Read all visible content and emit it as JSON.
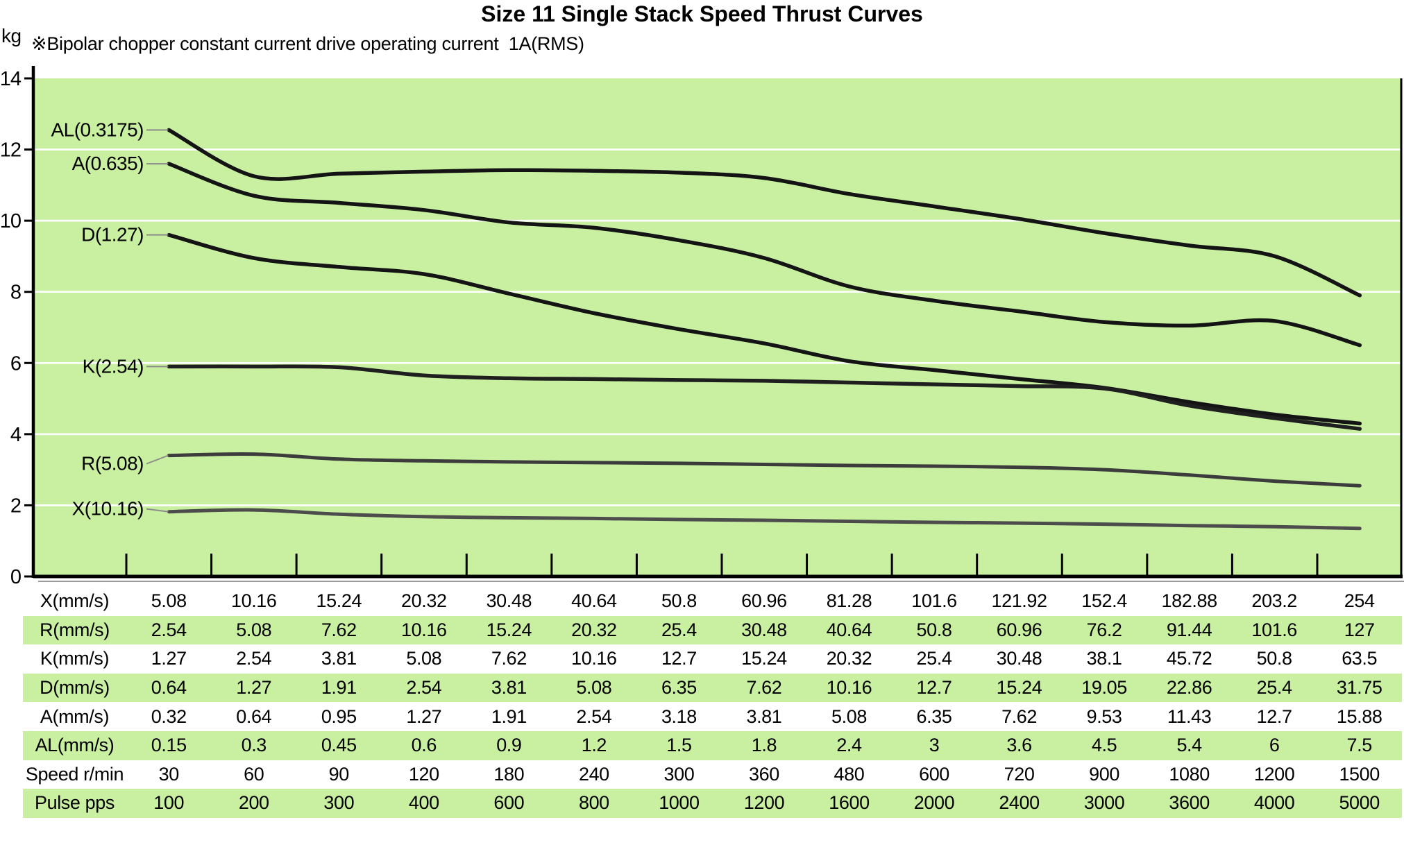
{
  "title": "Size 11 Single Stack Speed Thrust Curves",
  "note": "※Bipolar chopper constant current drive operating current  1A(RMS)",
  "y_axis": {
    "unit": "kg",
    "ticks": [
      0,
      2,
      4,
      6,
      8,
      10,
      12,
      14
    ],
    "max": 14
  },
  "colors": {
    "plot_bg": "#c8f0a0",
    "band": "#c8f0a0",
    "grid": "#ffffff",
    "axis": "#000000",
    "axis_shadow": "#9a9a9a",
    "leader": "#8c8c8c"
  },
  "chart_data": {
    "type": "line",
    "title": "Size 11 Single Stack Speed Thrust Curves",
    "xlabel": "",
    "ylabel": "kg",
    "ylim": [
      0,
      14
    ],
    "grid": "horizontal white gridlines every 2 kg",
    "legend_position": "inline labels with leader lines at curve start",
    "categories": [
      "5.08",
      "10.16",
      "15.24",
      "20.32",
      "30.48",
      "40.64",
      "50.8",
      "60.96",
      "81.28",
      "101.6",
      "121.92",
      "152.4",
      "182.88",
      "203.2",
      "254"
    ],
    "series": [
      {
        "name": "AL(0.3175)",
        "color": "#141414",
        "width": 5.5,
        "label_dy": 0,
        "values": [
          12.55,
          11.25,
          11.32,
          11.38,
          11.42,
          11.4,
          11.35,
          11.2,
          10.75,
          10.4,
          10.05,
          9.65,
          9.3,
          9.0,
          7.9
        ]
      },
      {
        "name": "A(0.635)",
        "color": "#141414",
        "width": 5.5,
        "label_dy": 0,
        "values": [
          11.6,
          10.7,
          10.5,
          10.3,
          9.95,
          9.8,
          9.45,
          8.95,
          8.15,
          7.75,
          7.45,
          7.15,
          7.05,
          7.18,
          6.5
        ]
      },
      {
        "name": "D(1.27)",
        "color": "#141414",
        "width": 5.5,
        "label_dy": 0,
        "values": [
          9.6,
          8.95,
          8.7,
          8.5,
          7.95,
          7.4,
          6.95,
          6.55,
          6.05,
          5.8,
          5.55,
          5.3,
          4.9,
          4.55,
          4.3
        ]
      },
      {
        "name": "K(2.54)",
        "color": "#1f1f1f",
        "width": 5.5,
        "label_dy": 0,
        "values": [
          5.9,
          5.9,
          5.88,
          5.65,
          5.57,
          5.55,
          5.52,
          5.5,
          5.45,
          5.4,
          5.35,
          5.28,
          4.8,
          4.45,
          4.15
        ]
      },
      {
        "name": "R(5.08)",
        "color": "#3c3c3c",
        "width": 5,
        "label_dy": 12,
        "values": [
          3.4,
          3.44,
          3.3,
          3.25,
          3.22,
          3.2,
          3.18,
          3.15,
          3.12,
          3.1,
          3.07,
          3.0,
          2.85,
          2.68,
          2.55
        ]
      },
      {
        "name": "X(10.16)",
        "color": "#4c4c4c",
        "width": 5,
        "label_dy": -4,
        "values": [
          1.82,
          1.87,
          1.75,
          1.68,
          1.65,
          1.63,
          1.6,
          1.58,
          1.55,
          1.52,
          1.5,
          1.47,
          1.43,
          1.4,
          1.35
        ]
      }
    ]
  },
  "table": {
    "rows": [
      {
        "label": "X(mm/s)",
        "shaded": false,
        "values": [
          "5.08",
          "10.16",
          "15.24",
          "20.32",
          "30.48",
          "40.64",
          "50.8",
          "60.96",
          "81.28",
          "101.6",
          "121.92",
          "152.4",
          "182.88",
          "203.2",
          "254"
        ]
      },
      {
        "label": "R(mm/s)",
        "shaded": true,
        "values": [
          "2.54",
          "5.08",
          "7.62",
          "10.16",
          "15.24",
          "20.32",
          "25.4",
          "30.48",
          "40.64",
          "50.8",
          "60.96",
          "76.2",
          "91.44",
          "101.6",
          "127"
        ]
      },
      {
        "label": "K(mm/s)",
        "shaded": false,
        "values": [
          "1.27",
          "2.54",
          "3.81",
          "5.08",
          "7.62",
          "10.16",
          "12.7",
          "15.24",
          "20.32",
          "25.4",
          "30.48",
          "38.1",
          "45.72",
          "50.8",
          "63.5"
        ]
      },
      {
        "label": "D(mm/s)",
        "shaded": true,
        "values": [
          "0.64",
          "1.27",
          "1.91",
          "2.54",
          "3.81",
          "5.08",
          "6.35",
          "7.62",
          "10.16",
          "12.7",
          "15.24",
          "19.05",
          "22.86",
          "25.4",
          "31.75"
        ]
      },
      {
        "label": "A(mm/s)",
        "shaded": false,
        "values": [
          "0.32",
          "0.64",
          "0.95",
          "1.27",
          "1.91",
          "2.54",
          "3.18",
          "3.81",
          "5.08",
          "6.35",
          "7.62",
          "9.53",
          "11.43",
          "12.7",
          "15.88"
        ]
      },
      {
        "label": "AL(mm/s)",
        "shaded": true,
        "values": [
          "0.15",
          "0.3",
          "0.45",
          "0.6",
          "0.9",
          "1.2",
          "1.5",
          "1.8",
          "2.4",
          "3",
          "3.6",
          "4.5",
          "5.4",
          "6",
          "7.5"
        ]
      },
      {
        "label": "Speed r/min",
        "shaded": false,
        "values": [
          "30",
          "60",
          "90",
          "120",
          "180",
          "240",
          "300",
          "360",
          "480",
          "600",
          "720",
          "900",
          "1080",
          "1200",
          "1500"
        ]
      },
      {
        "label": "Pulse pps",
        "shaded": true,
        "values": [
          "100",
          "200",
          "300",
          "400",
          "600",
          "800",
          "1000",
          "1200",
          "1600",
          "2000",
          "2400",
          "3000",
          "3600",
          "4000",
          "5000"
        ]
      }
    ]
  }
}
